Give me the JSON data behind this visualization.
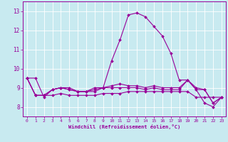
{
  "xlabel": "Windchill (Refroidissement éolien,°C)",
  "background_color": "#c8eaf0",
  "line_color": "#990099",
  "grid_color": "#ffffff",
  "xlim": [
    -0.5,
    23.5
  ],
  "ylim": [
    7.5,
    13.5
  ],
  "yticks": [
    8,
    9,
    10,
    11,
    12,
    13
  ],
  "xticks": [
    0,
    1,
    2,
    3,
    4,
    5,
    6,
    7,
    8,
    9,
    10,
    11,
    12,
    13,
    14,
    15,
    16,
    17,
    18,
    19,
    20,
    21,
    22,
    23
  ],
  "series": [
    {
      "x": [
        0,
        1,
        2,
        3,
        4,
        5,
        6,
        7,
        8,
        9,
        10,
        11,
        12,
        13,
        14,
        15,
        16,
        17,
        18,
        19,
        20,
        21,
        22,
        23
      ],
      "y": [
        9.5,
        9.5,
        8.5,
        8.9,
        9.0,
        9.0,
        8.8,
        8.8,
        9.0,
        9.0,
        10.4,
        11.5,
        12.8,
        12.9,
        12.7,
        12.2,
        11.7,
        10.8,
        9.4,
        9.4,
        8.9,
        8.2,
        8.0,
        8.5
      ]
    },
    {
      "x": [
        0,
        1,
        2,
        3,
        4,
        5,
        6,
        7,
        8,
        9,
        10,
        11,
        12,
        13,
        14,
        15,
        16,
        17,
        18,
        19,
        20,
        21,
        22,
        23
      ],
      "y": [
        9.5,
        8.6,
        8.6,
        8.6,
        8.7,
        8.6,
        8.6,
        8.6,
        8.6,
        8.7,
        8.7,
        8.7,
        8.8,
        8.8,
        8.8,
        8.8,
        8.8,
        8.8,
        8.8,
        8.8,
        8.5,
        8.5,
        8.5,
        8.5
      ]
    },
    {
      "x": [
        0,
        1,
        2,
        3,
        4,
        5,
        6,
        7,
        8,
        9,
        10,
        11,
        12,
        13,
        14,
        15,
        16,
        17,
        18,
        19,
        20,
        21,
        22,
        23
      ],
      "y": [
        9.5,
        8.6,
        8.6,
        8.9,
        9.0,
        8.9,
        8.8,
        8.8,
        8.8,
        9.0,
        9.0,
        9.0,
        9.0,
        9.0,
        8.9,
        9.0,
        8.9,
        8.9,
        8.9,
        9.4,
        8.9,
        8.9,
        8.2,
        8.5
      ]
    },
    {
      "x": [
        0,
        1,
        2,
        3,
        4,
        5,
        6,
        7,
        8,
        9,
        10,
        11,
        12,
        13,
        14,
        15,
        16,
        17,
        18,
        19,
        20,
        21,
        22,
        23
      ],
      "y": [
        9.5,
        8.6,
        8.6,
        8.9,
        9.0,
        8.9,
        8.8,
        8.8,
        8.9,
        9.0,
        9.1,
        9.2,
        9.1,
        9.1,
        9.0,
        9.1,
        9.0,
        9.0,
        9.0,
        9.4,
        9.0,
        8.9,
        8.2,
        8.5
      ]
    }
  ]
}
